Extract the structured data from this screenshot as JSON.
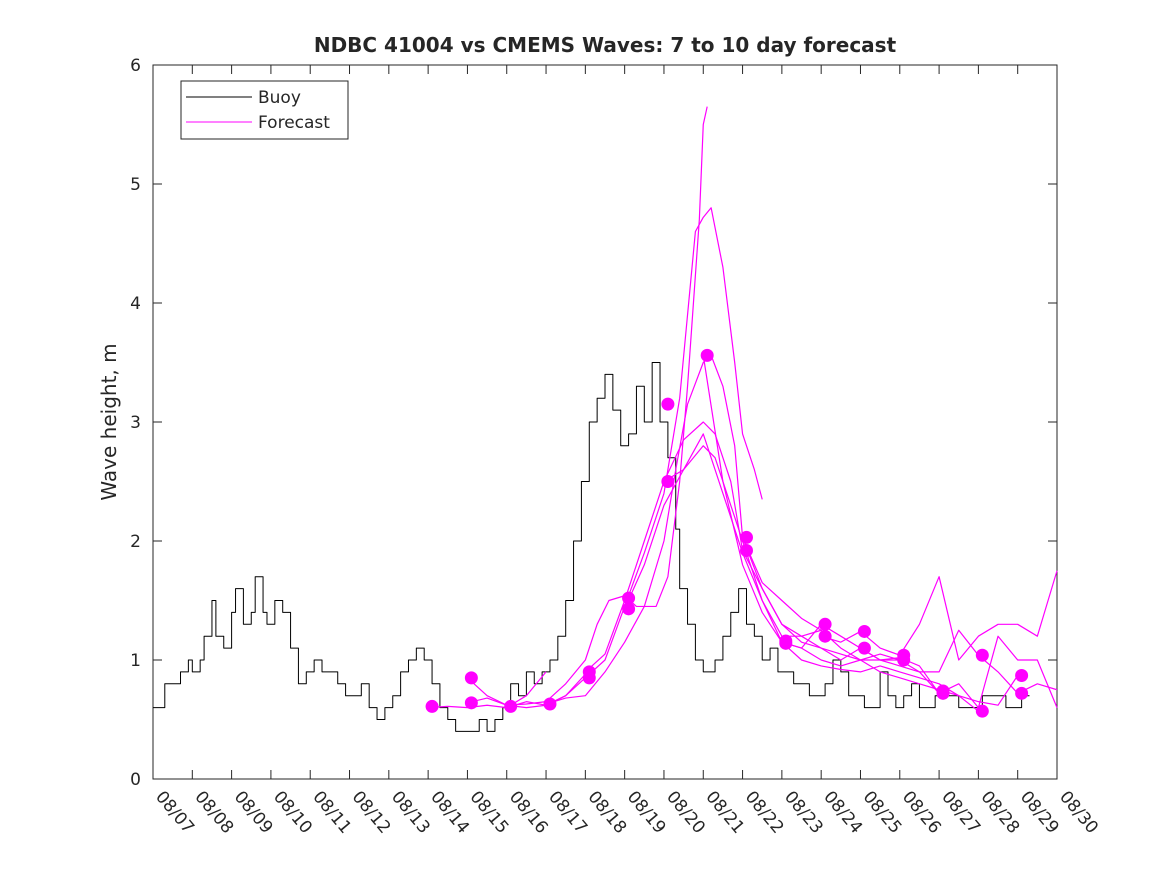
{
  "chart_data": {
    "type": "line",
    "title": "NDBC 41004 vs CMEMS Waves: 7 to 10 day forecast",
    "xlabel": "",
    "ylabel": "Wave height, m",
    "xlim": [
      0,
      23
    ],
    "ylim": [
      0,
      6
    ],
    "y_ticks": [
      "0",
      "1",
      "2",
      "3",
      "4",
      "5",
      "6"
    ],
    "x_ticks": [
      "08/07",
      "08/08",
      "08/09",
      "08/10",
      "08/11",
      "08/12",
      "08/13",
      "08/14",
      "08/15",
      "08/16",
      "08/17",
      "08/18",
      "08/19",
      "08/20",
      "08/21",
      "08/22",
      "08/23",
      "08/24",
      "08/25",
      "08/26",
      "08/27",
      "08/28",
      "08/29",
      "08/30"
    ],
    "legend": {
      "position": "top-left",
      "entries": [
        {
          "label": "Buoy",
          "color": "#000000"
        },
        {
          "label": "Forecast",
          "color": "#ff00ff"
        }
      ]
    },
    "series": [
      {
        "name": "Buoy",
        "color": "#000000",
        "x": [
          0.0,
          0.2,
          0.3,
          0.5,
          0.7,
          0.9,
          1.0,
          1.2,
          1.3,
          1.5,
          1.6,
          1.8,
          2.0,
          2.1,
          2.3,
          2.5,
          2.6,
          2.8,
          2.9,
          3.1,
          3.3,
          3.5,
          3.7,
          3.9,
          4.1,
          4.3,
          4.5,
          4.7,
          4.9,
          5.1,
          5.3,
          5.5,
          5.7,
          5.9,
          6.1,
          6.3,
          6.5,
          6.7,
          6.9,
          7.1,
          7.3,
          7.5,
          7.7,
          7.9,
          8.1,
          8.3,
          8.5,
          8.7,
          8.9,
          9.1,
          9.3,
          9.5,
          9.7,
          9.9,
          10.1,
          10.3,
          10.5,
          10.7,
          10.9,
          11.1,
          11.3,
          11.5,
          11.7,
          11.9,
          12.1,
          12.3,
          12.5,
          12.7,
          12.9,
          13.1,
          13.3,
          13.4,
          13.6,
          13.8,
          14.0,
          14.1,
          14.3,
          14.5,
          14.7,
          14.9,
          15.1,
          15.3,
          15.5,
          15.7,
          15.9,
          16.1,
          16.3,
          16.5,
          16.7,
          16.9,
          17.1,
          17.3,
          17.5,
          17.7,
          17.9,
          18.1,
          18.3,
          18.5,
          18.7,
          18.9,
          19.1,
          19.3,
          19.5,
          19.7,
          19.9,
          20.1,
          20.3,
          20.5,
          20.7,
          20.9,
          21.1,
          21.3,
          21.5,
          21.7,
          21.9,
          22.1
        ],
        "values": [
          0.6,
          0.6,
          0.8,
          0.8,
          0.9,
          1.0,
          0.9,
          1.0,
          1.2,
          1.5,
          1.2,
          1.1,
          1.4,
          1.6,
          1.3,
          1.4,
          1.7,
          1.4,
          1.3,
          1.5,
          1.4,
          1.1,
          0.8,
          0.9,
          1.0,
          0.9,
          0.9,
          0.8,
          0.7,
          0.7,
          0.8,
          0.6,
          0.5,
          0.6,
          0.7,
          0.9,
          1.0,
          1.1,
          1.0,
          0.8,
          0.6,
          0.5,
          0.4,
          0.4,
          0.4,
          0.5,
          0.4,
          0.5,
          0.6,
          0.8,
          0.7,
          0.9,
          0.8,
          0.9,
          1.0,
          1.2,
          1.5,
          2.0,
          2.5,
          3.0,
          3.2,
          3.4,
          3.1,
          2.8,
          2.9,
          3.3,
          3.0,
          3.5,
          3.0,
          2.7,
          2.1,
          1.6,
          1.3,
          1.0,
          0.9,
          0.9,
          1.0,
          1.2,
          1.4,
          1.6,
          1.3,
          1.2,
          1.0,
          1.1,
          0.9,
          0.9,
          0.8,
          0.8,
          0.7,
          0.7,
          0.8,
          1.0,
          0.9,
          0.7,
          0.7,
          0.6,
          0.6,
          0.9,
          0.7,
          0.6,
          0.7,
          0.8,
          0.6,
          0.6,
          0.7,
          0.7,
          0.7,
          0.6,
          0.6,
          0.6,
          0.7,
          0.7,
          0.7,
          0.6,
          0.6,
          0.7
        ]
      },
      {
        "name": "Forecast",
        "color": "#ff00ff",
        "x": [
          7.0,
          7.5,
          8.0,
          8.5,
          9.0,
          9.5,
          10.0
        ],
        "values": [
          0.6,
          0.61,
          0.6,
          0.62,
          0.6,
          0.7,
          0.9
        ]
      },
      {
        "name": "Forecast",
        "color": "#ff00ff",
        "x": [
          8.0,
          8.5,
          9.0,
          9.5,
          10.0,
          10.5,
          11.0
        ],
        "values": [
          0.85,
          0.7,
          0.62,
          0.6,
          0.62,
          0.7,
          0.88
        ]
      },
      {
        "name": "Forecast",
        "color": "#ff00ff",
        "x": [
          8.0,
          8.5,
          9.0,
          9.5,
          10.0,
          10.5,
          11.0,
          11.3,
          11.6,
          12.0,
          12.3,
          12.6,
          12.8,
          13.1,
          13.4,
          13.6,
          13.9,
          14.0,
          14.1
        ],
        "values": [
          0.64,
          0.68,
          0.62,
          0.63,
          0.65,
          0.8,
          1.0,
          1.3,
          1.5,
          1.54,
          1.45,
          1.45,
          1.45,
          1.7,
          2.5,
          3.3,
          4.7,
          5.5,
          5.65
        ]
      },
      {
        "name": "Forecast",
        "color": "#ff00ff",
        "x": [
          9.0,
          9.5,
          10.0,
          10.5,
          11.0,
          11.5,
          12.0,
          12.5,
          13.0,
          13.4,
          13.8,
          14.0,
          14.2,
          14.5,
          14.8,
          15.0,
          15.3,
          15.5
        ],
        "values": [
          0.6,
          0.65,
          0.62,
          0.7,
          0.85,
          1.0,
          1.45,
          1.9,
          2.4,
          3.2,
          4.6,
          4.72,
          4.8,
          4.3,
          3.5,
          2.9,
          2.6,
          2.35
        ]
      },
      {
        "name": "Forecast",
        "color": "#ff00ff",
        "x": [
          10.0,
          10.5,
          11.0,
          11.5,
          12.0,
          12.5,
          13.0,
          13.3,
          13.6,
          14.0,
          14.2,
          14.5,
          14.8,
          15.0,
          15.5,
          16.0,
          16.5,
          17.0
        ],
        "values": [
          0.63,
          0.68,
          0.7,
          0.9,
          1.15,
          1.45,
          2.0,
          2.6,
          3.15,
          3.5,
          3.56,
          3.3,
          2.8,
          2.03,
          1.65,
          1.5,
          1.35,
          1.25
        ]
      },
      {
        "name": "Forecast",
        "color": "#ff00ff",
        "x": [
          11.0,
          11.5,
          12.0,
          12.5,
          13.0,
          13.5,
          14.0,
          14.3,
          14.7,
          15.0,
          15.5,
          16.0,
          16.5,
          17.0,
          17.5,
          18.0
        ],
        "values": [
          0.9,
          1.05,
          1.5,
          2.0,
          2.5,
          2.85,
          3.0,
          2.9,
          2.5,
          1.92,
          1.6,
          1.3,
          1.2,
          1.1,
          1.0,
          1.1
        ]
      },
      {
        "name": "Forecast",
        "color": "#ff00ff",
        "x": [
          12.0,
          12.5,
          13.0,
          13.5,
          14.0,
          14.3,
          14.7,
          15.0,
          15.5,
          16.0,
          16.5,
          17.0,
          17.5,
          18.0,
          18.5,
          19.0
        ],
        "values": [
          1.43,
          1.8,
          2.3,
          2.6,
          2.8,
          2.7,
          2.3,
          2.0,
          1.5,
          1.15,
          1.1,
          1.0,
          0.95,
          1.0,
          1.05,
          1.0
        ]
      },
      {
        "name": "Forecast",
        "color": "#ff00ff",
        "x": [
          13.0,
          13.5,
          14.0,
          14.5,
          15.0,
          15.5,
          16.0,
          16.5,
          17.0,
          17.5,
          18.0,
          18.5,
          19.0,
          19.5,
          20.0
        ],
        "values": [
          2.5,
          2.6,
          2.9,
          2.4,
          1.9,
          1.5,
          1.2,
          1.2,
          1.25,
          1.1,
          1.0,
          1.0,
          1.0,
          0.9,
          0.72
        ]
      },
      {
        "name": "Forecast",
        "color": "#ff00ff",
        "x": [
          14.0,
          14.5,
          15.0,
          15.5,
          16.0,
          16.5,
          17.0,
          17.5,
          18.0,
          18.5,
          19.0,
          19.5,
          20.0,
          20.5,
          21.0
        ],
        "values": [
          3.56,
          2.5,
          1.8,
          1.4,
          1.15,
          1.0,
          0.95,
          0.92,
          0.9,
          0.95,
          0.9,
          0.85,
          0.8,
          0.7,
          0.57
        ]
      },
      {
        "name": "Forecast",
        "color": "#ff00ff",
        "x": [
          15.0,
          15.5,
          16.0,
          16.5,
          17.0,
          17.5,
          18.0,
          18.5,
          19.0,
          19.5,
          20.0,
          20.5,
          21.0,
          21.5,
          22.0
        ],
        "values": [
          2.03,
          1.6,
          1.3,
          1.15,
          1.1,
          1.05,
          1.0,
          0.9,
          0.85,
          0.8,
          0.75,
          0.7,
          0.65,
          0.62,
          0.87
        ]
      },
      {
        "name": "Forecast",
        "color": "#ff00ff",
        "x": [
          16.0,
          16.5,
          17.0,
          17.5,
          18.0,
          18.5,
          19.0,
          19.5,
          20.0,
          20.5,
          21.0,
          21.5,
          22.0,
          22.5,
          23.0
        ],
        "values": [
          1.15,
          1.1,
          1.3,
          1.2,
          1.1,
          1.0,
          0.95,
          0.9,
          0.9,
          1.25,
          1.04,
          0.9,
          0.72,
          0.8,
          0.75
        ]
      },
      {
        "name": "Forecast",
        "color": "#ff00ff",
        "x": [
          17.0,
          17.5,
          18.0,
          18.5,
          19.0,
          19.5,
          20.0,
          20.5,
          21.0,
          21.5,
          22.0,
          22.5,
          23.0
        ],
        "values": [
          1.2,
          1.15,
          1.24,
          1.1,
          1.04,
          1.3,
          1.7,
          1.0,
          1.2,
          1.3,
          1.3,
          1.2,
          1.75
        ]
      },
      {
        "name": "Forecast",
        "color": "#ff00ff",
        "x": [
          18.0,
          18.5,
          19.0,
          19.5,
          20.0,
          20.5,
          21.0,
          21.5,
          22.0,
          22.5,
          23.0
        ],
        "values": [
          1.1,
          1.0,
          1.02,
          0.95,
          0.72,
          0.8,
          0.6,
          1.2,
          1.0,
          1.0,
          0.6
        ]
      }
    ],
    "markers": {
      "color": "#ff00ff",
      "points": [
        {
          "x": 7.1,
          "y": 0.61
        },
        {
          "x": 8.1,
          "y": 0.85
        },
        {
          "x": 8.1,
          "y": 0.64
        },
        {
          "x": 9.1,
          "y": 0.61
        },
        {
          "x": 10.1,
          "y": 0.63
        },
        {
          "x": 11.1,
          "y": 0.9
        },
        {
          "x": 11.1,
          "y": 0.85
        },
        {
          "x": 12.1,
          "y": 1.52
        },
        {
          "x": 12.1,
          "y": 1.43
        },
        {
          "x": 13.1,
          "y": 3.15
        },
        {
          "x": 13.1,
          "y": 2.5
        },
        {
          "x": 14.1,
          "y": 3.56
        },
        {
          "x": 15.1,
          "y": 2.03
        },
        {
          "x": 15.1,
          "y": 1.92
        },
        {
          "x": 16.1,
          "y": 1.16
        },
        {
          "x": 16.1,
          "y": 1.14
        },
        {
          "x": 17.1,
          "y": 1.3
        },
        {
          "x": 17.1,
          "y": 1.2
        },
        {
          "x": 18.1,
          "y": 1.24
        },
        {
          "x": 18.1,
          "y": 1.1
        },
        {
          "x": 19.1,
          "y": 1.04
        },
        {
          "x": 19.1,
          "y": 1.0
        },
        {
          "x": 20.1,
          "y": 0.74
        },
        {
          "x": 20.1,
          "y": 0.72
        },
        {
          "x": 21.1,
          "y": 1.04
        },
        {
          "x": 21.1,
          "y": 0.57
        },
        {
          "x": 22.1,
          "y": 0.87
        },
        {
          "x": 22.1,
          "y": 0.72
        }
      ]
    }
  }
}
